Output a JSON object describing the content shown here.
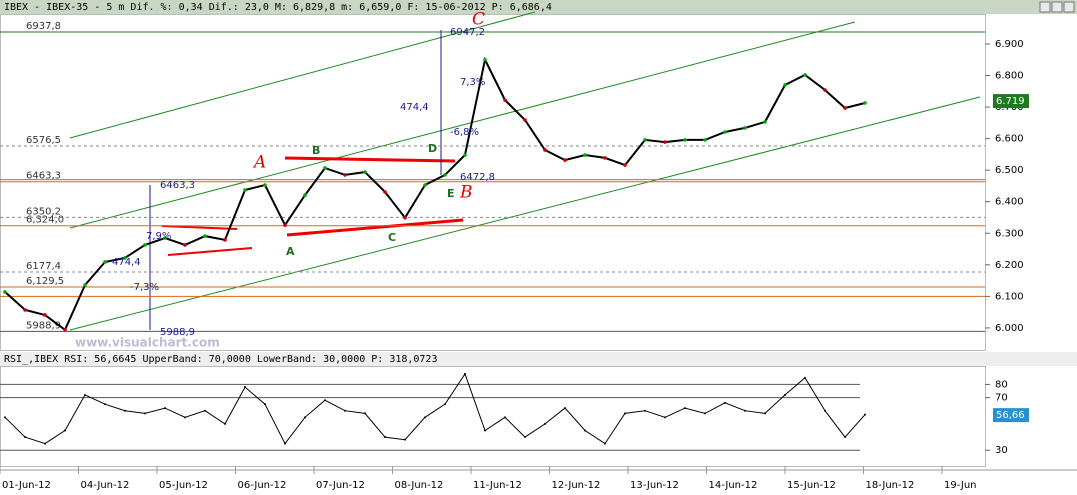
{
  "header": "IBEX - IBEX-35 - 5 m Dif. %: 0,34 Dif.: 23,0 M: 6,829,8 m: 6,659,0 F: 15-06-2012 P: 6,686,4",
  "rsi_header": "RSI_,IBEX RSI: 56,6645 UpperBand: 70,0000 LowerBand: 30,0000 P: 318,0723",
  "watermark": "www.visualchart.com",
  "time_axis": [
    "01-Jun-12",
    "04-Jun-12",
    "05-Jun-12",
    "06-Jun-12",
    "07-Jun-12",
    "08-Jun-12",
    "11-Jun-12",
    "12-Jun-12",
    "13-Jun-12",
    "14-Jun-12",
    "15-Jun-12",
    "18-Jun-12",
    "19-Jun"
  ],
  "chart_data": [
    {
      "type": "line",
      "color": "#000000",
      "values": [
        6114,
        6057,
        6041,
        5994,
        6136,
        6209,
        6222,
        6263,
        6285,
        6263,
        6291,
        6279,
        6437,
        6453,
        6326,
        6421,
        6507,
        6485,
        6494,
        6431,
        6349,
        6453,
        6485,
        6548,
        6850,
        6722,
        6659,
        6564,
        6532,
        6548,
        6539,
        6516,
        6596,
        6589,
        6596,
        6596,
        6621,
        6634,
        6653,
        6770,
        6802,
        6754,
        6697,
        6713
      ],
      "ylim": [
        5930,
        6995
      ],
      "yticks": [
        {
          "value": 6000,
          "label": "6.000"
        },
        {
          "value": 6100,
          "label": "6.100"
        },
        {
          "value": 6200,
          "label": "6.200"
        },
        {
          "value": 6300,
          "label": "6.300"
        },
        {
          "value": 6400,
          "label": "6.400"
        },
        {
          "value": 6500,
          "label": "6.500"
        },
        {
          "value": 6600,
          "label": "6.600"
        },
        {
          "value": 6700,
          "label": "6.700"
        },
        {
          "value": 6800,
          "label": "6.800"
        },
        {
          "value": 6900,
          "label": "6.900"
        }
      ],
      "last": {
        "value": 6719,
        "label": "6.719"
      },
      "levels": [
        {
          "value": 6937.8,
          "label": "6937,8",
          "color": "#1f7a1f"
        },
        {
          "value": 6576.5,
          "label": "6576,5",
          "color": "#888888"
        },
        {
          "value": 6463.3,
          "label": "6463,3",
          "color": "#d2691e"
        },
        {
          "value": 6350.2,
          "label": "6350,2",
          "color": "#888888"
        },
        {
          "value": 6324.0,
          "label": "6,324,0",
          "color": "#d2691e"
        },
        {
          "value": 6177.4,
          "label": "6177,4",
          "color": "#888888"
        },
        {
          "value": 6129.5,
          "label": "6,129,5",
          "color": "#d2691e"
        },
        {
          "value": 5988.9,
          "label": "5988,9",
          "color": "#1f7a1f"
        }
      ],
      "extra_lines": [
        6470,
        6100
      ],
      "annotations": [
        {
          "text": "C",
          "color": "#e00000"
        },
        {
          "text": "A",
          "color": "#e00000"
        },
        {
          "text": "B",
          "color": "#e00000"
        },
        {
          "text": "B",
          "color": "#1f6e1f"
        },
        {
          "text": "D",
          "color": "#1f6e1f"
        },
        {
          "text": "E",
          "color": "#1f6e1f"
        },
        {
          "text": "A",
          "color": "#1f6e1f"
        },
        {
          "text": "C",
          "color": "#1f6e1f"
        },
        {
          "text": "6947,2",
          "color": "#1a1a8c"
        },
        {
          "text": "7,3%",
          "color": "#1a1a8c"
        },
        {
          "text": "474,4",
          "color": "#1a1a8c"
        },
        {
          "text": "-6,8%",
          "color": "#1a1a8c"
        },
        {
          "text": "6472,8",
          "color": "#1a1a8c"
        },
        {
          "text": "6463,3",
          "color": "#1a1a8c"
        },
        {
          "text": "7,9%",
          "color": "#1a1a8c"
        },
        {
          "text": "474,4",
          "color": "#1a1a8c"
        },
        {
          "text": "-7,3%",
          "color": "#1a1a8c"
        },
        {
          "text": "5988,9",
          "color": "#1a1a8c"
        }
      ]
    },
    {
      "type": "line",
      "color": "#000000",
      "values": [
        55,
        40,
        35,
        45,
        72,
        65,
        60,
        58,
        62,
        55,
        60,
        50,
        78,
        65,
        35,
        55,
        68,
        60,
        58,
        40,
        38,
        55,
        65,
        88,
        45,
        55,
        40,
        50,
        62,
        45,
        35,
        58,
        60,
        55,
        62,
        58,
        66,
        60,
        58,
        72,
        85,
        60,
        40,
        57
      ],
      "ylim": [
        18,
        94
      ],
      "yticks": [
        30,
        70,
        80
      ],
      "last": {
        "value": 56.66,
        "label": "56,66"
      }
    }
  ]
}
